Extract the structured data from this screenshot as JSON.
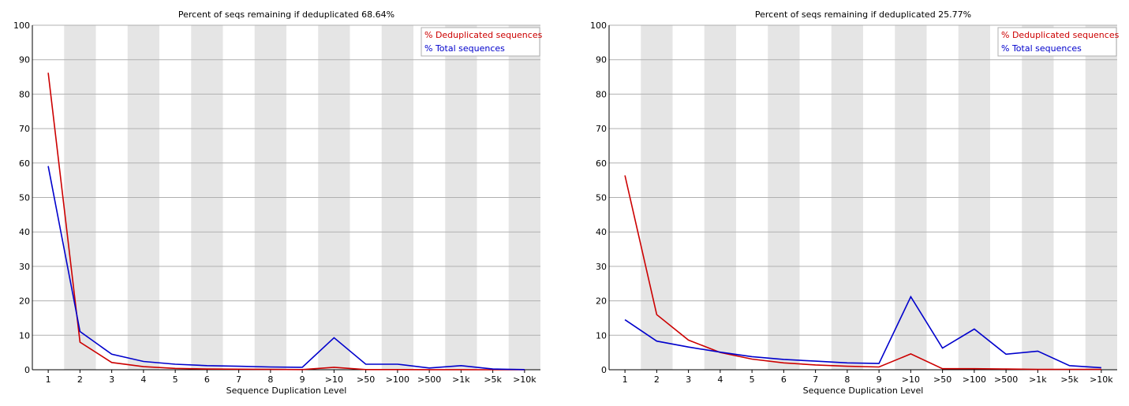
{
  "chart_data": [
    {
      "type": "line",
      "title": "Percent of seqs remaining if deduplicated 68.64%",
      "xlabel": "Sequence Duplication Level",
      "ylabel": "",
      "categories": [
        "1",
        "2",
        "3",
        "4",
        "5",
        "6",
        "7",
        "8",
        "9",
        ">10",
        ">50",
        ">100",
        ">500",
        ">1k",
        ">5k",
        ">10k"
      ],
      "ylim": [
        0,
        100
      ],
      "yticks": [
        0,
        10,
        20,
        30,
        40,
        50,
        60,
        70,
        80,
        90,
        100
      ],
      "grid": true,
      "legend": "top-right",
      "series": [
        {
          "name": "% Deduplicated sequences",
          "color": "#cc0000",
          "values": [
            86.2,
            8.0,
            2.1,
            0.9,
            0.4,
            0.2,
            0.15,
            0.1,
            0.05,
            0.7,
            0.05,
            0.05,
            0.02,
            0.02,
            0.01,
            0.01
          ]
        },
        {
          "name": "% Total sequences",
          "color": "#0000cc",
          "values": [
            59.1,
            11.1,
            4.5,
            2.4,
            1.6,
            1.2,
            1.0,
            0.8,
            0.7,
            9.3,
            1.6,
            1.6,
            0.5,
            1.2,
            0.2,
            0.05
          ]
        }
      ]
    },
    {
      "type": "line",
      "title": "Percent of seqs remaining if deduplicated 25.77%",
      "xlabel": "Sequence Duplication Level",
      "ylabel": "",
      "categories": [
        "1",
        "2",
        "3",
        "4",
        "5",
        "6",
        "7",
        "8",
        "9",
        ">10",
        ">50",
        ">100",
        ">500",
        ">1k",
        ">5k",
        ">10k"
      ],
      "ylim": [
        0,
        100
      ],
      "yticks": [
        0,
        10,
        20,
        30,
        40,
        50,
        60,
        70,
        80,
        90,
        100
      ],
      "grid": true,
      "legend": "top-right",
      "series": [
        {
          "name": "% Deduplicated sequences",
          "color": "#cc0000",
          "values": [
            56.4,
            16.0,
            8.6,
            5.0,
            3.1,
            2.0,
            1.4,
            1.0,
            0.8,
            4.6,
            0.3,
            0.3,
            0.2,
            0.1,
            0.1,
            0.1
          ]
        },
        {
          "name": "% Total sequences",
          "color": "#0000cc",
          "values": [
            14.5,
            8.3,
            6.6,
            5.1,
            3.8,
            3.0,
            2.5,
            2.0,
            1.8,
            21.2,
            6.3,
            11.8,
            4.5,
            5.4,
            1.2,
            0.6
          ]
        }
      ]
    }
  ]
}
